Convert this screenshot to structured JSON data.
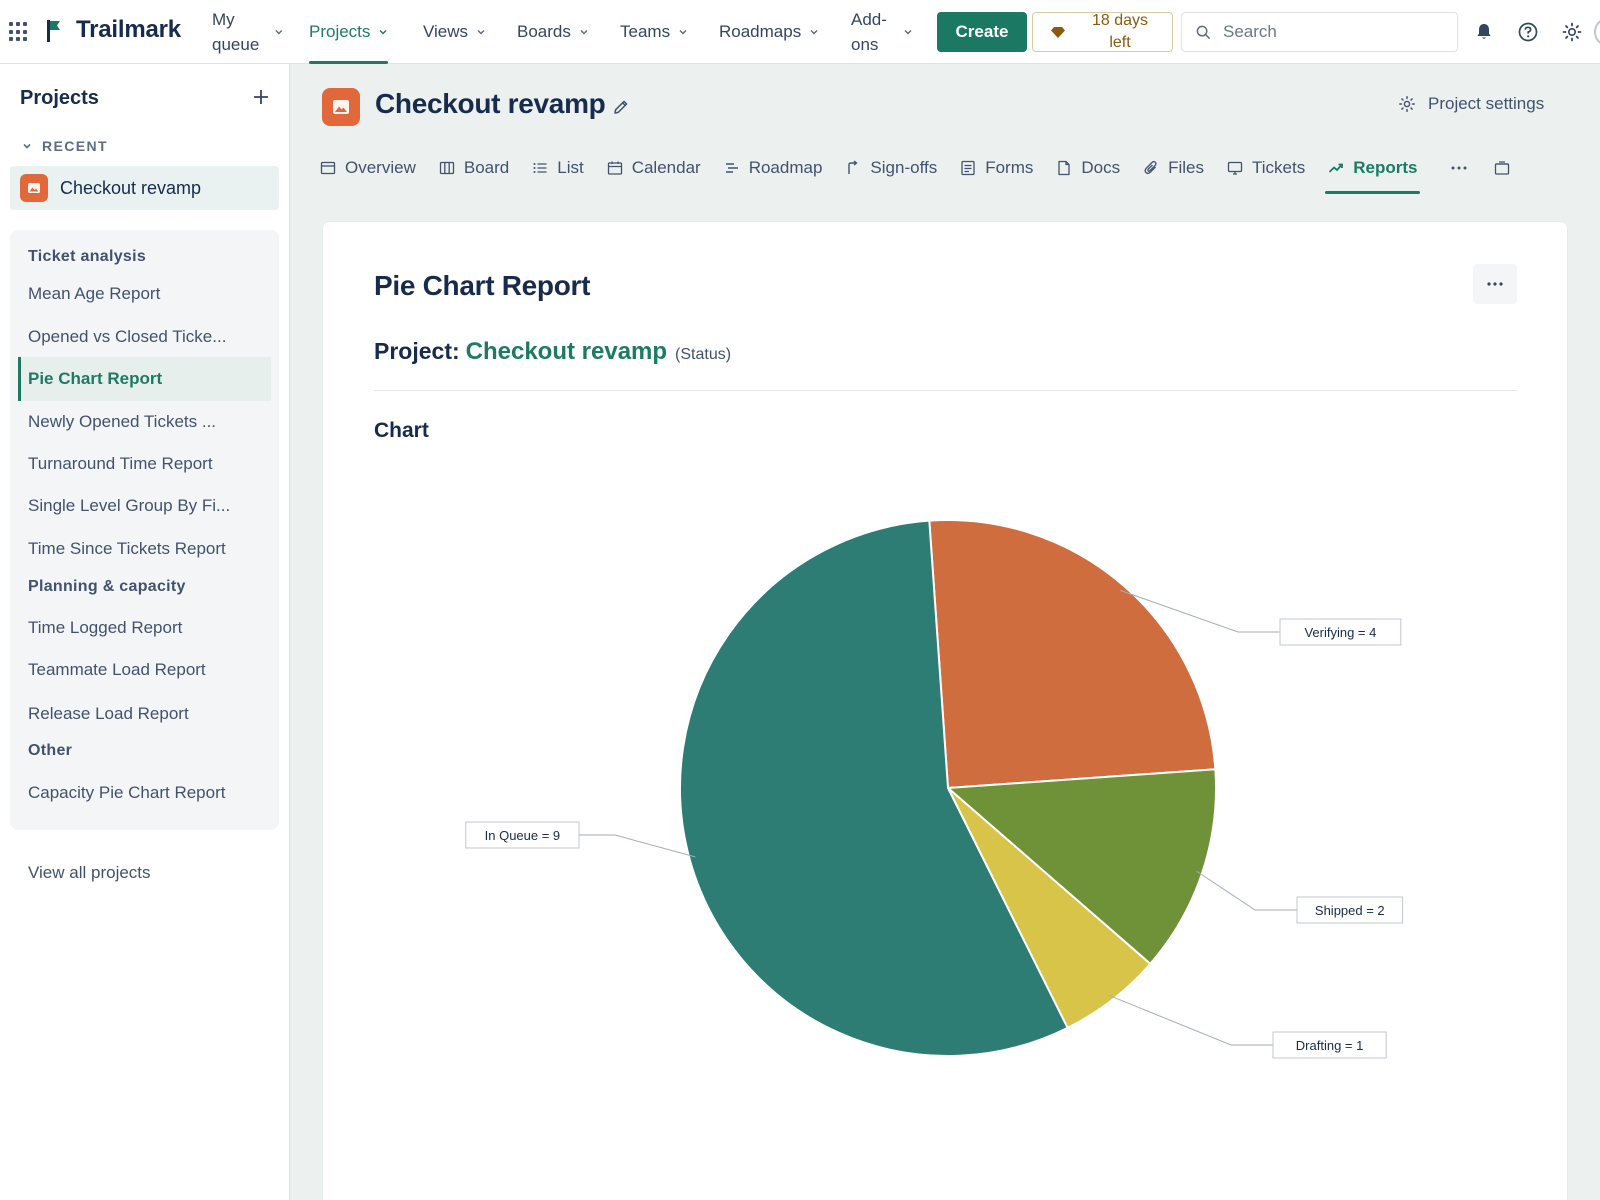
{
  "app": {
    "name": "Trailmark",
    "brand_color": "#1b7862"
  },
  "topnav": {
    "items": [
      {
        "label": "My queue",
        "has_menu": true
      },
      {
        "label": "Projects",
        "has_menu": true,
        "active": true
      },
      {
        "label": "Views",
        "has_menu": true
      },
      {
        "label": "Boards",
        "has_menu": true
      },
      {
        "label": "Teams",
        "has_menu": true
      },
      {
        "label": "Roadmaps",
        "has_menu": true
      },
      {
        "label": "Add-ons",
        "has_menu": true
      }
    ],
    "create_label": "Create",
    "trial_label": "18 days left",
    "search_placeholder": "Search",
    "icons": [
      "apps-grid-icon",
      "bell-icon",
      "help-icon",
      "settings-gear-icon"
    ]
  },
  "sidebar": {
    "title": "Projects",
    "recent_label": "RECENT",
    "recent_project": "Checkout revamp",
    "groups": [
      {
        "label": "Ticket analysis",
        "reports": [
          "Mean Age Report",
          "Opened vs Closed Ticke...",
          "Pie Chart Report",
          "Newly Opened Tickets ...",
          "Turnaround Time Report",
          "Single Level Group By Fi...",
          "Time Since Tickets Report"
        ]
      },
      {
        "label": "Planning & capacity",
        "reports": [
          "Time Logged Report",
          "Teammate Load Report",
          "Release Load Report"
        ]
      },
      {
        "label": "Other",
        "reports": [
          "Capacity Pie Chart Report"
        ]
      }
    ],
    "active_report": "Pie Chart Report",
    "view_all_label": "View all projects"
  },
  "project": {
    "title": "Checkout revamp",
    "settings_label": "Project settings",
    "tabs": [
      {
        "label": "Overview",
        "icon": "overview-icon"
      },
      {
        "label": "Board",
        "icon": "board-icon"
      },
      {
        "label": "List",
        "icon": "list-icon"
      },
      {
        "label": "Calendar",
        "icon": "calendar-icon"
      },
      {
        "label": "Roadmap",
        "icon": "roadmap-icon"
      },
      {
        "label": "Sign-offs",
        "icon": "sign-offs-icon"
      },
      {
        "label": "Forms",
        "icon": "forms-icon"
      },
      {
        "label": "Docs",
        "icon": "docs-icon"
      },
      {
        "label": "Files",
        "icon": "files-icon"
      },
      {
        "label": "Tickets",
        "icon": "tickets-icon"
      },
      {
        "label": "Reports",
        "icon": "reports-icon",
        "active": true
      }
    ]
  },
  "report": {
    "title": "Pie Chart Report",
    "project_label": "Project:",
    "project_name": "Checkout revamp",
    "field_label": "(Status)",
    "chart_heading": "Chart"
  },
  "chart_data": {
    "type": "pie",
    "slices": [
      {
        "label": "Verifying",
        "value": 4,
        "color": "#d06d3e"
      },
      {
        "label": "Shipped",
        "value": 2,
        "color": "#6f9138"
      },
      {
        "label": "Drafting",
        "value": 1,
        "color": "#d7c448"
      },
      {
        "label": "In Queue",
        "value": 9,
        "color": "#2d7d74"
      }
    ],
    "label_format": "{label} = {value}"
  }
}
